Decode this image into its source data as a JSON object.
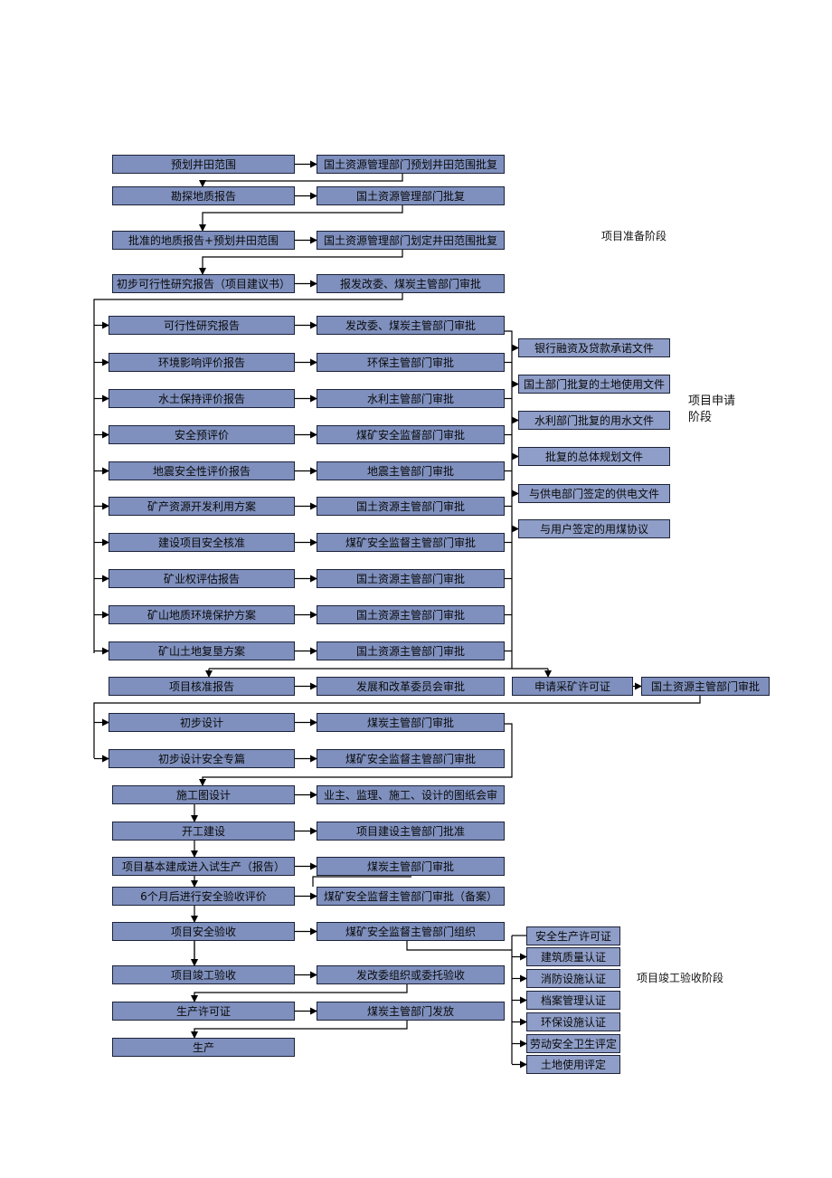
{
  "left_column": [
    "预划井田范围",
    "勘探地质报告",
    "批准的地质报告+预划井田范围",
    "初步可行性研究报告（项目建议书）",
    "可行性研究报告",
    "环境影响评价报告",
    "水土保持评价报告",
    "安全预评价",
    "地震安全性评价报告",
    "矿产资源开发利用方案",
    "建设项目安全核准",
    "矿业权评估报告",
    "矿山地质环境保护方案",
    "矿山土地复垦方案",
    "项目核准报告",
    "初步设计",
    "初步设计安全专篇",
    "施工图设计",
    "开工建设",
    "项目基本建成进入试生产（报告）",
    "6个月后进行安全验收评价",
    "项目安全验收",
    "项目竣工验收",
    "生产许可证",
    "生产"
  ],
  "middle_column": [
    "国土资源管理部门预划井田范围批复",
    "国土资源管理部门批复",
    "国土资源管理部门划定井田范围批复",
    "报发改委、煤炭主管部门审批",
    "发改委、煤炭主管部门审批",
    "环保主管部门审批",
    "水利主管部门审批",
    "煤矿安全监督部门审批",
    "地震主管部门审批",
    "国土资源主管部门审批",
    "煤矿安全监督主管部门审批",
    "国土资源主管部门审批",
    "国土资源主管部门审批",
    "国土资源主管部门审批",
    "发展和改革委员会审批",
    "煤炭主管部门审批",
    "煤矿安全监督主管部门审批",
    "业主、监理、施工、设计的图纸会审",
    "项目建设主管部门批准",
    "煤炭主管部门审批",
    "煤矿安全监督主管部门审批（备案）",
    "煤矿安全监督主管部门组织",
    "发改委组织或委托验收",
    "煤炭主管部门发放"
  ],
  "application_documents": [
    "银行融资及贷款承诺文件",
    "国土部门批复的土地使用文件",
    "水利部门批复的用水文件",
    "批复的总体规划文件",
    "与供电部门签定的供电文件",
    "与用户签定的用煤协议"
  ],
  "mining_permit": {
    "apply": "申请采矿许可证",
    "approve": "国土资源主管部门审批"
  },
  "acceptance_items": [
    "安全生产许可证",
    "建筑质量认证",
    "消防设施认证",
    "档案管理认证",
    "环保设施认证",
    "劳动安全卫生评定",
    "土地使用评定"
  ],
  "stages": {
    "preparation": "项目准备阶段",
    "application_line1": "项目申请",
    "application_line2": "阶段",
    "completion": "项目竣工验收阶段"
  },
  "colors": {
    "box_fill": "#7f90be",
    "box_border": "#1c2238",
    "connector": "#000000"
  }
}
